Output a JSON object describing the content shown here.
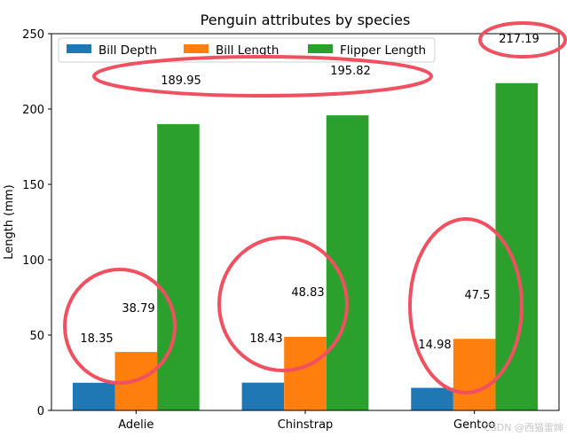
{
  "chart_data": {
    "type": "bar",
    "title": "Penguin attributes by species",
    "ylabel": "Length (mm)",
    "xlabel": "",
    "categories": [
      "Adelie",
      "Chinstrap",
      "Gentoo"
    ],
    "series": [
      {
        "name": "Bill Depth",
        "values": [
          18.35,
          18.43,
          14.98
        ],
        "color": "#1f77b4",
        "labels": [
          "18.35",
          "18.43",
          "14.98"
        ]
      },
      {
        "name": "Bill Length",
        "values": [
          38.79,
          48.83,
          47.5
        ],
        "color": "#ff7f0e",
        "labels": [
          "38.79",
          "48.83",
          "47.5"
        ]
      },
      {
        "name": "Flipper Length",
        "values": [
          189.95,
          195.82,
          217.19
        ],
        "color": "#2ca02c",
        "labels": [
          "189.95",
          "195.82",
          "217.19"
        ]
      }
    ],
    "ylim": [
      0,
      250
    ],
    "yticks": [
      0,
      50,
      100,
      150,
      200,
      250
    ],
    "legend": {
      "placement": "top-left",
      "ncols": 3
    },
    "grid": false
  },
  "annotations": {
    "ellipse_color": "#f05060"
  },
  "watermark": "CSDN @西猫雷婶"
}
